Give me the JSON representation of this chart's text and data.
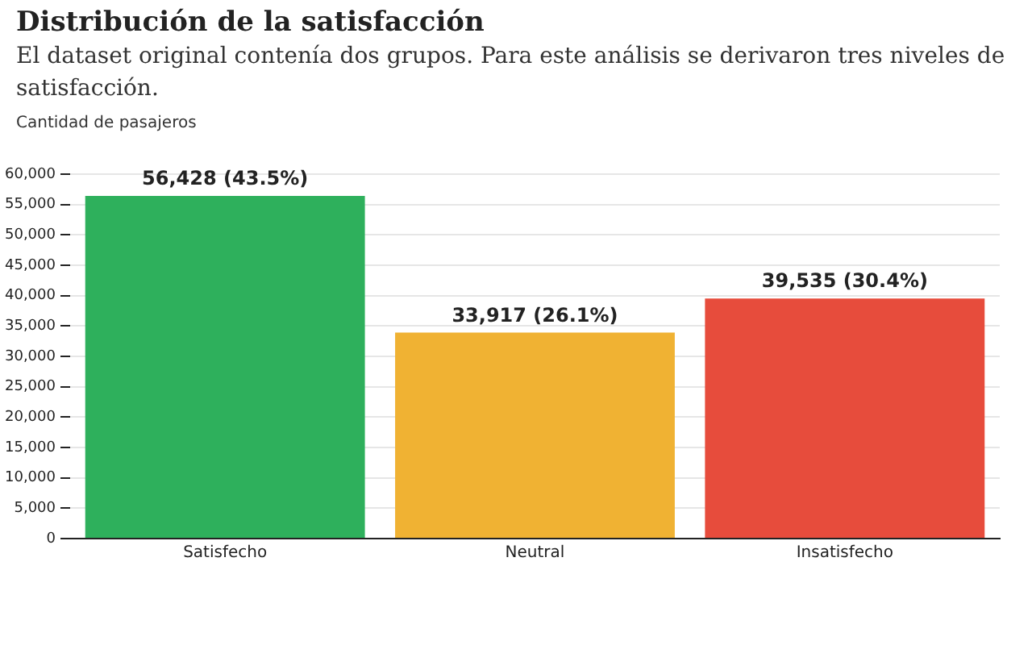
{
  "chart_data": {
    "type": "bar",
    "title": "Distribución de la satisfacción",
    "subtitle": "El dataset original contenía dos grupos. Para este análisis se derivaron tres niveles de satisfacción.",
    "ylabel": "Cantidad de pasajeros",
    "categories": [
      "Satisfecho",
      "Neutral",
      "Insatisfecho"
    ],
    "values": [
      56428,
      33917,
      39535
    ],
    "colors": [
      "#2eb05c",
      "#f0b233",
      "#e74c3c"
    ],
    "value_labels": [
      "56,428 (43.5%)",
      "33,917 (26.1%)",
      "39,535 (30.4%)"
    ],
    "ylim": [
      0,
      60000
    ],
    "yticks": [
      0,
      {
        "value": 5000,
        "label": "5,000"
      },
      {
        "value": 10000,
        "label": "10,000"
      },
      {
        "value": 15000,
        "label": "15,000"
      },
      {
        "value": 20000,
        "label": "20,000"
      },
      {
        "value": 25000,
        "label": "25,000"
      },
      {
        "value": 30000,
        "label": "30,000"
      },
      {
        "value": 35000,
        "label": "35,000"
      },
      {
        "value": 40000,
        "label": "40,000"
      },
      {
        "value": 45000,
        "label": "45,000"
      },
      {
        "value": 50000,
        "label": "50,000"
      },
      {
        "value": 55000,
        "label": "55,000"
      },
      {
        "value": 60000,
        "label": "60,000"
      }
    ],
    "grid": "y",
    "legend": false
  }
}
